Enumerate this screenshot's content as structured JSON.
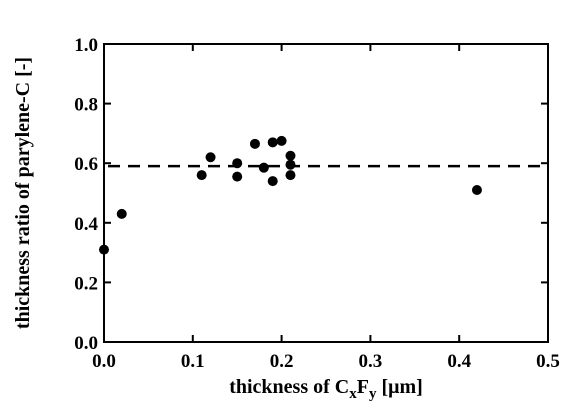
{
  "chart_data": {
    "type": "scatter",
    "xlabel": {
      "prefix": "thickness of C",
      "sub1": "x",
      "mid": "F",
      "sub2": "y",
      "suffix": " [μm]"
    },
    "ylabel": "thickness ratio of parylene-C [-]",
    "xlim": [
      0.0,
      0.5
    ],
    "ylim": [
      0.0,
      1.0
    ],
    "xticks": [
      "0.0",
      "0.1",
      "0.2",
      "0.3",
      "0.4",
      "0.5"
    ],
    "yticks": [
      "0.0",
      "0.2",
      "0.4",
      "0.6",
      "0.8",
      "1.0"
    ],
    "x_tick_values": [
      0.0,
      0.1,
      0.2,
      0.3,
      0.4,
      0.5
    ],
    "y_tick_values": [
      0.0,
      0.2,
      0.4,
      0.6,
      0.8,
      1.0
    ],
    "reference_line": {
      "y": 0.59,
      "style": "dashed"
    },
    "points": [
      {
        "x": 0.0,
        "y": 0.31
      },
      {
        "x": 0.02,
        "y": 0.43
      },
      {
        "x": 0.11,
        "y": 0.56
      },
      {
        "x": 0.12,
        "y": 0.62
      },
      {
        "x": 0.15,
        "y": 0.6
      },
      {
        "x": 0.15,
        "y": 0.555
      },
      {
        "x": 0.17,
        "y": 0.665
      },
      {
        "x": 0.18,
        "y": 0.585
      },
      {
        "x": 0.19,
        "y": 0.67
      },
      {
        "x": 0.19,
        "y": 0.54
      },
      {
        "x": 0.2,
        "y": 0.675
      },
      {
        "x": 0.21,
        "y": 0.625
      },
      {
        "x": 0.21,
        "y": 0.595
      },
      {
        "x": 0.21,
        "y": 0.56
      },
      {
        "x": 0.42,
        "y": 0.51
      }
    ],
    "grid": false,
    "marker_color": "#000000"
  }
}
